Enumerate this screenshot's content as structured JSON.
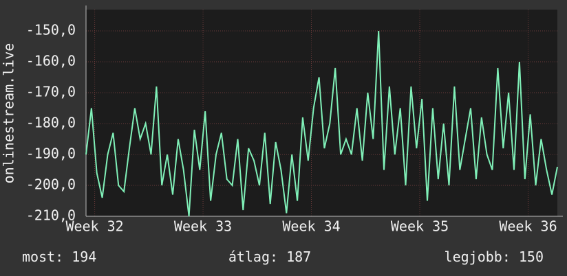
{
  "chart_data": {
    "type": "line",
    "y_label": "onlinestream.live",
    "x": [
      31.92,
      31.97,
      32.02,
      32.07,
      32.12,
      32.17,
      32.22,
      32.27,
      32.32,
      32.37,
      32.42,
      32.47,
      32.52,
      32.57,
      32.62,
      32.67,
      32.72,
      32.77,
      32.82,
      32.87,
      32.92,
      32.97,
      33.02,
      33.07,
      33.12,
      33.17,
      33.22,
      33.27,
      33.32,
      33.37,
      33.42,
      33.47,
      33.52,
      33.57,
      33.62,
      33.67,
      33.72,
      33.77,
      33.82,
      33.87,
      33.92,
      33.97,
      34.02,
      34.07,
      34.12,
      34.17,
      34.22,
      34.27,
      34.32,
      34.37,
      34.42,
      34.47,
      34.52,
      34.57,
      34.62,
      34.67,
      34.72,
      34.77,
      34.82,
      34.87,
      34.92,
      34.97,
      35.02,
      35.07,
      35.12,
      35.17,
      35.22,
      35.27,
      35.32,
      35.37,
      35.42,
      35.47,
      35.52,
      35.57,
      35.62,
      35.67,
      35.72,
      35.77,
      35.82,
      35.87,
      35.92,
      35.97,
      36.02,
      36.07,
      36.12,
      36.17,
      36.22,
      36.27
    ],
    "series": [
      {
        "color": "#80f0b8",
        "values": [
          -190,
          -175,
          -196,
          -204,
          -190,
          -183,
          -200,
          -202,
          -188,
          -175,
          -185,
          -180,
          -190,
          -168,
          -200,
          -190,
          -203,
          -185,
          -195,
          -210,
          -182,
          -195,
          -176,
          -205,
          -190,
          -183,
          -198,
          -200,
          -185,
          -208,
          -188,
          -192,
          -200,
          -183,
          -206,
          -186,
          -195,
          -209,
          -190,
          -205,
          -178,
          -192,
          -175,
          -165,
          -188,
          -180,
          -162,
          -190,
          -185,
          -190,
          -175,
          -192,
          -170,
          -185,
          -150,
          -195,
          -168,
          -190,
          -175,
          -200,
          -168,
          -188,
          -172,
          -205,
          -175,
          -198,
          -180,
          -200,
          -168,
          -195,
          -185,
          -175,
          -198,
          -178,
          -190,
          -195,
          -162,
          -188,
          -170,
          -195,
          -160,
          -198,
          -177,
          -200,
          -185,
          -195,
          -203,
          -194
        ]
      }
    ],
    "xlim": [
      31.92,
      36.27
    ],
    "xticks": [
      {
        "value": 32,
        "label": "Week 32"
      },
      {
        "value": 33,
        "label": "Week 33"
      },
      {
        "value": 34,
        "label": "Week 34"
      },
      {
        "value": 35,
        "label": "Week 35"
      },
      {
        "value": 36,
        "label": "Week 36"
      }
    ],
    "ylim": [
      -210,
      -143.1
    ],
    "yticks": [
      {
        "value": -150,
        "label": "-150,0"
      },
      {
        "value": -160,
        "label": "-160,0"
      },
      {
        "value": -170,
        "label": "-170,0"
      },
      {
        "value": -180,
        "label": "-180,0"
      },
      {
        "value": -190,
        "label": "-190,0"
      },
      {
        "value": -200,
        "label": "-200,0"
      },
      {
        "value": -210,
        "label": "-210,0"
      }
    ],
    "grid": true,
    "stats": [
      {
        "label": "most:",
        "value": 194
      },
      {
        "label": "átlag:",
        "value": 187
      },
      {
        "label": "legjobb:",
        "value": 150
      }
    ]
  }
}
